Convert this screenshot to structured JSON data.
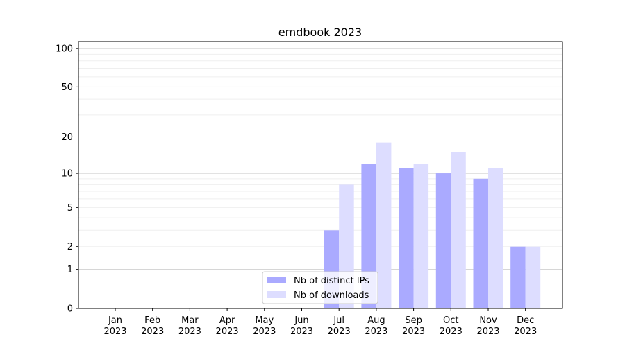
{
  "chart_data": {
    "type": "bar",
    "title": "emdbook 2023",
    "xlabel": "",
    "ylabel": "",
    "yscale": "symlog (log10(y+1))",
    "ylim": [
      0,
      113
    ],
    "yticks": [
      0,
      1,
      2,
      5,
      10,
      20,
      50,
      100
    ],
    "grid": true,
    "legend_position": "bottom-center",
    "categories": [
      "Jan\n2023",
      "Feb\n2023",
      "Mar\n2023",
      "Apr\n2023",
      "May\n2023",
      "Jun\n2023",
      "Jul\n2023",
      "Aug\n2023",
      "Sep\n2023",
      "Oct\n2023",
      "Nov\n2023",
      "Dec\n2023"
    ],
    "series": [
      {
        "name": "Nb of distinct IPs",
        "color": "#aaaaff",
        "values": [
          0,
          0,
          0,
          0,
          0,
          0,
          3,
          12,
          11,
          10,
          9,
          2
        ]
      },
      {
        "name": "Nb of downloads",
        "color": "#ddddff",
        "values": [
          0,
          0,
          0,
          0,
          0,
          0,
          8,
          18,
          12,
          15,
          11,
          2
        ]
      }
    ]
  }
}
